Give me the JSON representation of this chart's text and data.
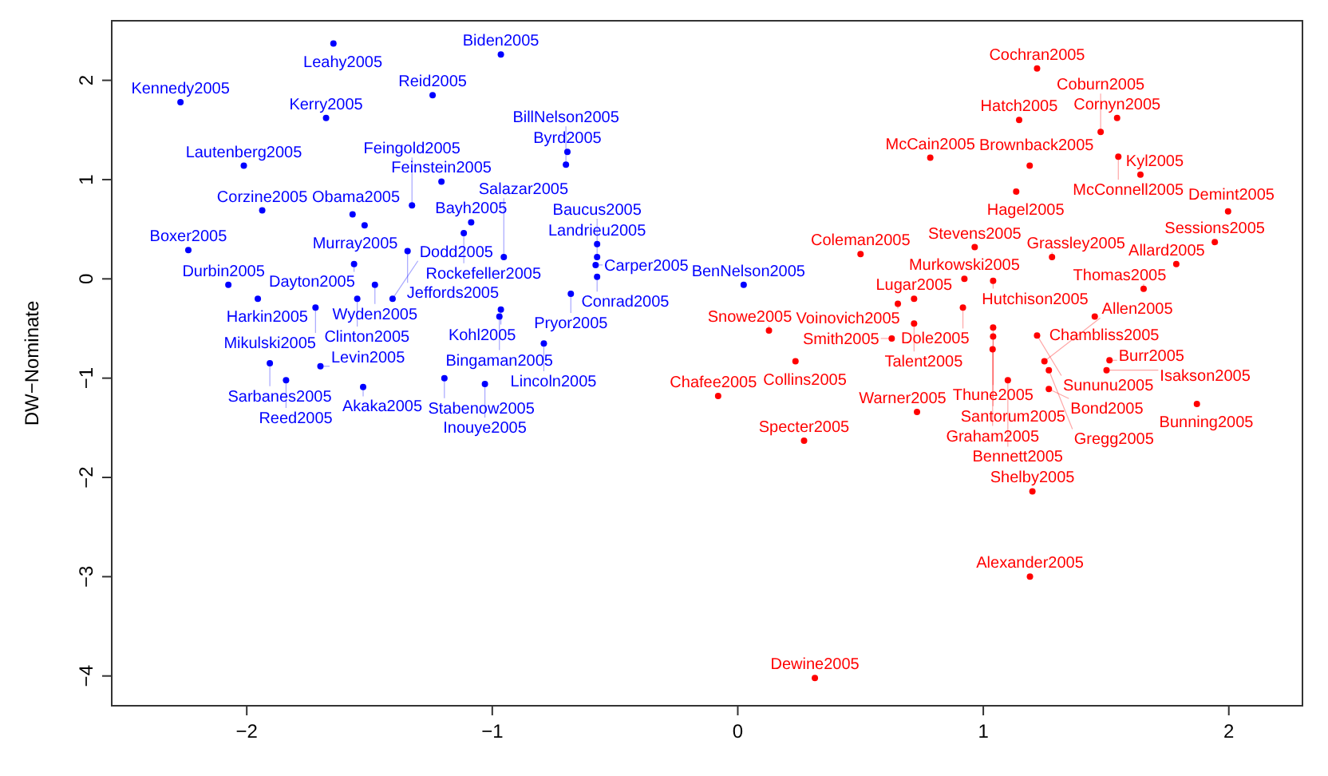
{
  "chart_data": {
    "type": "scatter",
    "ylabel": "DW−Nominate",
    "marker": "circle",
    "grid": false,
    "xlim": [
      -2.55,
      2.3
    ],
    "ylim": [
      -4.3,
      2.6
    ],
    "xticks": [
      {
        "value": -2,
        "label": "−2"
      },
      {
        "value": -1,
        "label": "−1"
      },
      0,
      1,
      2
    ],
    "yticks": [
      {
        "value": -4,
        "label": "−4"
      },
      {
        "value": -3,
        "label": "−3"
      },
      {
        "value": -2,
        "label": "−2"
      },
      {
        "value": -1,
        "label": "−1"
      },
      0,
      1,
      2
    ],
    "series": [
      {
        "color": "#0000ff",
        "x": [
          -1.647,
          -0.965,
          -2.27,
          -1.243,
          -1.677,
          -2.012,
          -0.694,
          -0.7,
          -1.207,
          -1.937,
          -1.569,
          -1.327,
          -1.52,
          -1.086,
          -1.116,
          -2.238,
          -0.573,
          -1.345,
          -0.953,
          -0.573,
          -0.579,
          -1.563,
          -0.573,
          -2.075,
          -1.478,
          -1.955,
          -1.55,
          -1.406,
          -1.72,
          -0.68,
          -0.965,
          -0.971,
          -0.79,
          -1.906,
          -1.7,
          -1.84,
          -1.526,
          -1.195,
          -1.03,
          0.024
        ],
        "values": [
          2.37,
          2.26,
          1.78,
          1.85,
          1.62,
          1.14,
          1.28,
          1.15,
          0.98,
          0.69,
          0.65,
          0.74,
          0.54,
          0.57,
          0.46,
          0.29,
          0.35,
          0.28,
          0.22,
          0.22,
          0.14,
          0.15,
          0.02,
          -0.06,
          -0.06,
          -0.2,
          -0.2,
          -0.2,
          -0.29,
          -0.15,
          -0.31,
          -0.38,
          -0.65,
          -0.85,
          -0.88,
          -1.02,
          -1.09,
          -1.0,
          -1.06,
          -0.06
        ],
        "value_labels": [
          "Leahy2005",
          "Biden2005",
          "Kennedy2005",
          "Reid2005",
          "Kerry2005",
          "Lautenberg2005",
          "Byrd2005",
          "BillNelson2005",
          "Feinstein2005",
          "Corzine2005",
          "Obama2005",
          "Feingold2005",
          "Murray2005",
          "Bayh2005",
          "Rockefeller2005",
          "Boxer2005",
          "Landrieu2005",
          "Jeffords2005",
          "Salazar2005",
          "Baucus2005",
          "Carper2005",
          "Dayton2005",
          "Conrad2005",
          "Durbin2005",
          "Wyden2005",
          "Harkin2005",
          "Clinton2005",
          "Dodd2005",
          "Mikulski2005",
          "Pryor2005",
          "Kohl2005",
          "Bingaman2005",
          "Lincoln2005",
          "Sarbanes2005",
          "Levin2005",
          "Reed2005",
          "Akaka2005",
          "Stabenow2005",
          "Inouye2005",
          "BenNelson2005"
        ]
      },
      {
        "color": "#ff0000",
        "x": [
          1.219,
          1.146,
          1.545,
          1.478,
          0.784,
          1.55,
          1.189,
          1.64,
          1.134,
          1.997,
          1.943,
          0.5,
          0.965,
          1.28,
          1.786,
          1.653,
          0.923,
          1.04,
          1.454,
          0.718,
          0.652,
          0.917,
          0.718,
          1.04,
          0.627,
          1.219,
          1.04,
          1.038,
          0.127,
          0.235,
          -0.08,
          0.73,
          1.1,
          1.267,
          1.514,
          1.249,
          1.267,
          1.502,
          1.87,
          0.27,
          1.2,
          1.19,
          0.314
        ],
        "values": [
          2.12,
          1.6,
          1.62,
          1.48,
          1.22,
          1.23,
          1.14,
          1.05,
          0.88,
          0.68,
          0.37,
          0.25,
          0.32,
          0.22,
          0.15,
          -0.1,
          0.0,
          -0.02,
          -0.38,
          -0.2,
          -0.25,
          -0.29,
          -0.45,
          -0.49,
          -0.6,
          -0.57,
          -0.58,
          -0.71,
          -0.52,
          -0.83,
          -1.18,
          -1.34,
          -1.02,
          -1.11,
          -0.82,
          -0.83,
          -0.92,
          -0.92,
          -1.26,
          -1.63,
          -2.14,
          -3.0,
          -4.02
        ],
        "value_labels": [
          "Cochran2005",
          "Hatch2005",
          "Cornyn2005",
          "Coburn2005",
          "McCain2005",
          "McConnell2005",
          "Brownback2005",
          "Kyl2005",
          "Hagel2005",
          "Demint2005",
          "Sessions2005",
          "Coleman2005",
          "Stevens2005",
          "Grassley2005",
          "Allard2005",
          "Thomas2005",
          "Murkowski2005",
          "Hutchison2005",
          "Chambliss2005",
          "Lugar2005",
          "Voinovich2005",
          "Dole2005",
          "Talent2005",
          "Thune2005",
          "Smith2005",
          "Sununu2005",
          "Santorum2005",
          "Graham2005",
          "Snowe2005",
          "Collins2005",
          "Chafee2005",
          "Warner2005",
          "Bennett2005",
          "Bond2005",
          "Burr2005",
          "Allen2005",
          "Gregg2005",
          "Isakson2005",
          "Bunning2005",
          "Specter2005",
          "Shelby2005",
          "Alexander2005",
          "Dewine2005"
        ]
      }
    ]
  }
}
